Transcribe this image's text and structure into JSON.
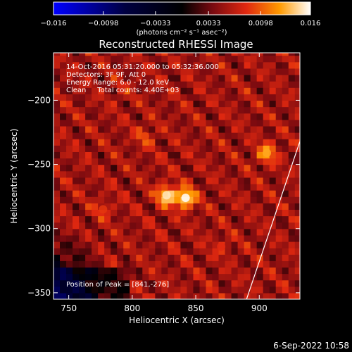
{
  "chart_data": {
    "type": "heatmap",
    "title": "Reconstructed RHESSI Image",
    "xlabel": "Heliocentric X (arcsec)",
    "ylabel": "Heliocentric Y (arcsec)",
    "xlim": [
      738,
      932
    ],
    "ylim": [
      -355,
      -163
    ],
    "x_ticks": [
      750,
      800,
      850,
      900
    ],
    "y_ticks": [
      -200,
      -250,
      -300,
      -350
    ],
    "tick_labels": {
      "x": [
        "750",
        "800",
        "850",
        "900"
      ],
      "y": [
        "−200",
        "−250",
        "−300",
        "−350"
      ]
    },
    "annotations": [
      "14-Oct-2016 05:31:20.000 to 05:32:36.000",
      "Detectors: 3F 9F, Att 0",
      "Energy Range: 6.0 - 12.0 keV",
      "Clean     Total counts: 4.40E+03"
    ],
    "peak_label": "Position of Peak = [841,-276]",
    "peak": [
      841,
      -276
    ],
    "limb_arc": {
      "from": [
        890,
        -355
      ],
      "to": [
        932,
        -232
      ]
    },
    "colorbar": {
      "range": [
        -0.016,
        0.016
      ],
      "ticks": [
        -0.016,
        -0.0098,
        -0.0033,
        0.0033,
        0.0098,
        0.016
      ],
      "tick_labels": [
        "−0.016",
        "−0.0098",
        "−0.0033",
        "0.0033",
        "0.0098",
        "0.016"
      ],
      "unit_label": "(photons cm⁻² s⁻¹ asec⁻²)"
    },
    "sources": [
      {
        "x": 827,
        "y": -274,
        "value": 0.015
      },
      {
        "x": 842,
        "y": -276,
        "value": 0.016
      },
      {
        "x": 906,
        "y": -241,
        "value": 0.0125
      },
      {
        "x": 810,
        "y": -228,
        "value": 0.009
      },
      {
        "x": 777,
        "y": -285,
        "value": 0.0085
      },
      {
        "x": 792,
        "y": -192,
        "value": 0.0075
      },
      {
        "x": 870,
        "y": -314,
        "value": 0.008
      }
    ],
    "colors": {
      "background": "#000000",
      "axis": "#ffffff"
    }
  },
  "timestamp": "6-Sep-2022 10:58"
}
